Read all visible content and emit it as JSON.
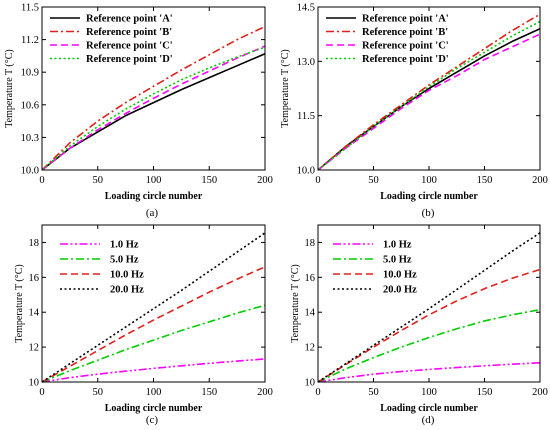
{
  "chart_data": [
    {
      "type": "line",
      "caption": "(a)",
      "xlabel": "Loading circle number",
      "ylabel": "Temperature T (°C)",
      "xlim": [
        0,
        200
      ],
      "ylim": [
        10.0,
        11.5
      ],
      "xticks": [
        "0",
        "50",
        "100",
        "150",
        "200"
      ],
      "yticks": [
        "10.0",
        "10.3",
        "10.6",
        "10.9",
        "11.2",
        "11.5"
      ],
      "legend_position": "top-left",
      "series": [
        {
          "name": "Reference point  'A'",
          "color": "#000000",
          "dash": "solid",
          "x": [
            0,
            25,
            50,
            75,
            100,
            125,
            150,
            175,
            200
          ],
          "y": [
            10.0,
            10.2,
            10.35,
            10.5,
            10.62,
            10.74,
            10.85,
            10.96,
            11.07
          ]
        },
        {
          "name": "Reference point  'B'",
          "color": "#e0201b",
          "dash": "dashdot",
          "x": [
            0,
            25,
            50,
            75,
            100,
            125,
            150,
            175,
            200
          ],
          "y": [
            10.0,
            10.25,
            10.45,
            10.62,
            10.77,
            10.92,
            11.06,
            11.2,
            11.32
          ]
        },
        {
          "name": "Reference point  'C'",
          "color": "#ff00ff",
          "dash": "dash",
          "x": [
            0,
            25,
            50,
            75,
            100,
            125,
            150,
            175,
            200
          ],
          "y": [
            10.0,
            10.2,
            10.37,
            10.52,
            10.66,
            10.79,
            10.91,
            11.03,
            11.14
          ]
        },
        {
          "name": "Reference point  'D'",
          "color": "#00cc00",
          "dash": "dot",
          "x": [
            0,
            25,
            50,
            75,
            100,
            125,
            150,
            175,
            200
          ],
          "y": [
            10.0,
            10.22,
            10.4,
            10.56,
            10.7,
            10.83,
            10.94,
            11.04,
            11.13
          ]
        }
      ]
    },
    {
      "type": "line",
      "caption": "(b)",
      "xlabel": "Loading circle number",
      "ylabel": "Temperature T (°C)",
      "xlim": [
        0,
        200
      ],
      "ylim": [
        10.0,
        14.5
      ],
      "xticks": [
        "0",
        "50",
        "100",
        "150",
        "200"
      ],
      "yticks": [
        "10.0",
        "11.5",
        "13.0",
        "14.5"
      ],
      "legend_position": "top-left",
      "series": [
        {
          "name": "Reference point  'A'",
          "color": "#000000",
          "dash": "solid",
          "x": [
            0,
            25,
            50,
            75,
            100,
            125,
            150,
            175,
            200
          ],
          "y": [
            10.0,
            10.65,
            11.2,
            11.75,
            12.25,
            12.7,
            13.15,
            13.55,
            13.9
          ]
        },
        {
          "name": "Reference point  'B'",
          "color": "#e0201b",
          "dash": "dashdot",
          "x": [
            0,
            25,
            50,
            75,
            100,
            125,
            150,
            175,
            200
          ],
          "y": [
            10.0,
            10.65,
            11.25,
            11.8,
            12.35,
            12.85,
            13.35,
            13.85,
            14.3
          ]
        },
        {
          "name": "Reference point  'C'",
          "color": "#ff00ff",
          "dash": "dash",
          "x": [
            0,
            25,
            50,
            75,
            100,
            125,
            150,
            175,
            200
          ],
          "y": [
            10.0,
            10.6,
            11.15,
            11.7,
            12.2,
            12.6,
            13.05,
            13.4,
            13.75
          ]
        },
        {
          "name": "Reference point  'D'",
          "color": "#00cc00",
          "dash": "dot",
          "x": [
            0,
            25,
            50,
            75,
            100,
            125,
            150,
            175,
            200
          ],
          "y": [
            10.0,
            10.6,
            11.2,
            11.75,
            12.3,
            12.8,
            13.25,
            13.7,
            14.1
          ]
        }
      ]
    },
    {
      "type": "line",
      "caption": "(c)",
      "xlabel": "Loading circle number",
      "ylabel": "Temperature T (°C)",
      "xlim": [
        0,
        200
      ],
      "ylim": [
        10,
        19
      ],
      "xticks": [
        "0",
        "50",
        "100",
        "150",
        "200"
      ],
      "yticks": [
        "10",
        "12",
        "14",
        "16",
        "18"
      ],
      "legend_position": "top-left",
      "series": [
        {
          "name": "1.0  Hz",
          "color": "#ff00ff",
          "dash": "dashdotdot",
          "x": [
            0,
            25,
            50,
            75,
            100,
            125,
            150,
            175,
            200
          ],
          "y": [
            10.0,
            10.25,
            10.45,
            10.62,
            10.78,
            10.93,
            11.07,
            11.2,
            11.32
          ]
        },
        {
          "name": "5.0  Hz",
          "color": "#00cc00",
          "dash": "dashdot",
          "x": [
            0,
            25,
            50,
            75,
            100,
            125,
            150,
            175,
            200
          ],
          "y": [
            10.0,
            10.65,
            11.25,
            11.85,
            12.4,
            12.95,
            13.45,
            13.95,
            14.4
          ]
        },
        {
          "name": "10.0  Hz",
          "color": "#e0201b",
          "dash": "dash",
          "x": [
            0,
            25,
            50,
            75,
            100,
            125,
            150,
            175,
            200
          ],
          "y": [
            10.0,
            10.9,
            11.8,
            12.7,
            13.55,
            14.35,
            15.15,
            15.9,
            16.6
          ]
        },
        {
          "name": "20.0  Hz",
          "color": "#000000",
          "dash": "dot",
          "x": [
            0,
            25,
            50,
            75,
            100,
            125,
            150,
            175,
            200
          ],
          "y": [
            10.0,
            11.05,
            12.1,
            13.15,
            14.2,
            15.25,
            16.35,
            17.45,
            18.55
          ]
        }
      ]
    },
    {
      "type": "line",
      "caption": "(d)",
      "xlabel": "Loading circle number",
      "ylabel": "Temperature T (°C)",
      "xlim": [
        0,
        200
      ],
      "ylim": [
        10,
        19
      ],
      "xticks": [
        "0",
        "50",
        "100",
        "150",
        "200"
      ],
      "yticks": [
        "10",
        "12",
        "14",
        "16",
        "18"
      ],
      "legend_position": "top-left",
      "series": [
        {
          "name": "1.0  Hz",
          "color": "#ff00ff",
          "dash": "dashdotdot",
          "x": [
            0,
            25,
            50,
            75,
            100,
            125,
            150,
            175,
            200
          ],
          "y": [
            10.0,
            10.25,
            10.45,
            10.6,
            10.72,
            10.83,
            10.93,
            11.02,
            11.1
          ]
        },
        {
          "name": "5.0  Hz",
          "color": "#00cc00",
          "dash": "dashdot",
          "x": [
            0,
            25,
            50,
            75,
            100,
            125,
            150,
            175,
            200
          ],
          "y": [
            10.0,
            10.75,
            11.4,
            12.0,
            12.55,
            13.05,
            13.5,
            13.85,
            14.15
          ]
        },
        {
          "name": "10.0  Hz",
          "color": "#e0201b",
          "dash": "dash",
          "x": [
            0,
            25,
            50,
            75,
            100,
            125,
            150,
            175,
            200
          ],
          "y": [
            10.0,
            11.0,
            12.0,
            12.95,
            13.85,
            14.65,
            15.35,
            15.95,
            16.45
          ]
        },
        {
          "name": "20.0  Hz",
          "color": "#000000",
          "dash": "dot",
          "x": [
            0,
            25,
            50,
            75,
            100,
            125,
            150,
            175,
            200
          ],
          "y": [
            10.0,
            11.05,
            12.1,
            13.15,
            14.2,
            15.3,
            16.4,
            17.5,
            18.55
          ]
        }
      ]
    }
  ]
}
